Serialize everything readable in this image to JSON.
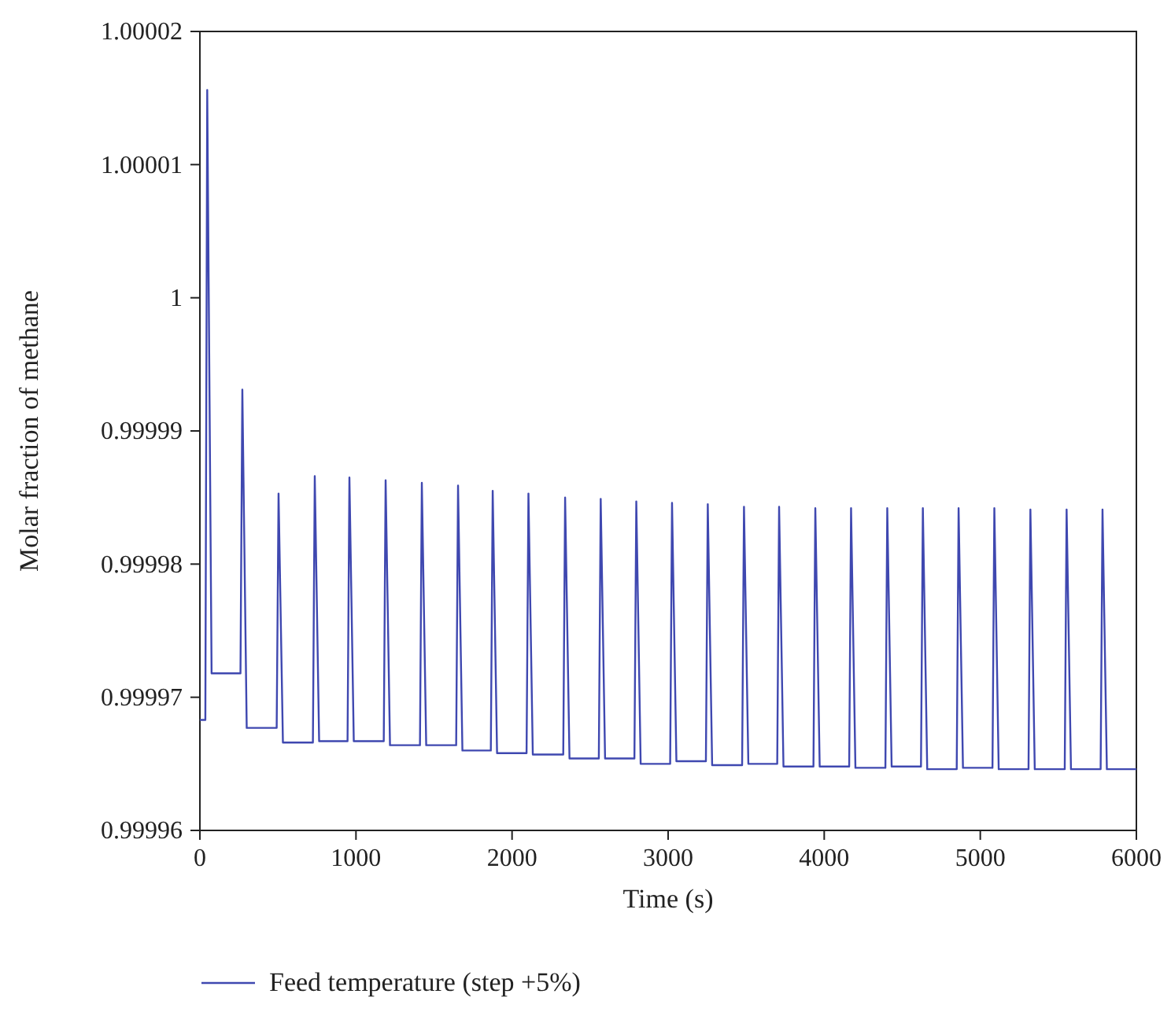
{
  "chart_data": {
    "type": "line",
    "xlabel": "Time (s)",
    "ylabel": "Molar fraction of methane",
    "xlim": [
      0,
      6000
    ],
    "xticks": [
      0,
      1000,
      2000,
      3000,
      4000,
      5000,
      6000
    ],
    "ylim": [
      0.99996,
      1.00002
    ],
    "yticks": [
      0.99996,
      0.99997,
      0.99998,
      0.99999,
      1,
      1.00001,
      1.00002
    ],
    "grid": false,
    "legend": "bottom",
    "marker": "none",
    "line_style": "solid",
    "series": [
      {
        "name": "Feed temperature (step +5%)",
        "color": "#3f48b0",
        "x": [
          0,
          35,
          47,
          75,
          260,
          272,
          300,
          492,
          504,
          532,
          724,
          736,
          764,
          946,
          958,
          986,
          1178,
          1190,
          1218,
          1410,
          1422,
          1450,
          1642,
          1654,
          1682,
          1864,
          1876,
          1904,
          2093,
          2105,
          2133,
          2328,
          2340,
          2368,
          2556,
          2568,
          2596,
          2784,
          2796,
          2824,
          3013,
          3025,
          3053,
          3242,
          3254,
          3282,
          3474,
          3486,
          3514,
          3699,
          3711,
          3739,
          3931,
          3943,
          3971,
          4160,
          4172,
          4200,
          4392,
          4404,
          4432,
          4620,
          4632,
          4660,
          4849,
          4861,
          4889,
          5078,
          5090,
          5118,
          5309,
          5321,
          5349,
          5541,
          5553,
          5581,
          5771,
          5783,
          5811,
          6000
        ],
        "values": [
          0.9999683,
          0.9999683,
          1.0000156,
          0.9999718,
          0.9999718,
          0.9999931,
          0.9999677,
          0.9999677,
          0.9999853,
          0.9999666,
          0.9999666,
          0.9999866,
          0.9999667,
          0.9999667,
          0.9999865,
          0.9999667,
          0.9999667,
          0.9999863,
          0.9999664,
          0.9999664,
          0.9999861,
          0.9999664,
          0.9999664,
          0.9999859,
          0.999966,
          0.999966,
          0.9999855,
          0.9999658,
          0.9999658,
          0.9999853,
          0.9999657,
          0.9999657,
          0.999985,
          0.9999654,
          0.9999654,
          0.9999849,
          0.9999654,
          0.9999654,
          0.9999847,
          0.999965,
          0.999965,
          0.9999846,
          0.9999652,
          0.9999652,
          0.9999845,
          0.9999649,
          0.9999649,
          0.9999843,
          0.999965,
          0.999965,
          0.9999843,
          0.9999648,
          0.9999648,
          0.9999842,
          0.9999648,
          0.9999648,
          0.9999842,
          0.9999647,
          0.9999647,
          0.9999842,
          0.9999648,
          0.9999648,
          0.9999842,
          0.9999646,
          0.9999646,
          0.9999842,
          0.9999647,
          0.9999647,
          0.9999842,
          0.9999646,
          0.9999646,
          0.9999841,
          0.9999646,
          0.9999646,
          0.9999841,
          0.9999646,
          0.9999646,
          0.9999841,
          0.9999646,
          0.9999646
        ]
      }
    ]
  }
}
